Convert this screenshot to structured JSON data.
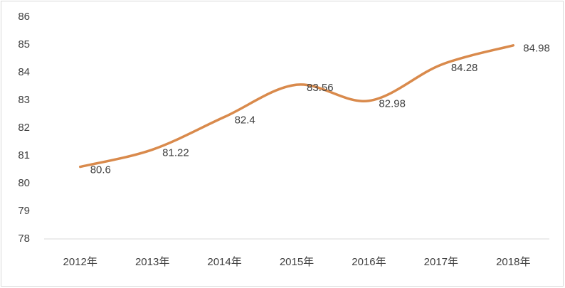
{
  "chart_data": {
    "type": "line",
    "categories": [
      "2012年",
      "2013年",
      "2014年",
      "2015年",
      "2016年",
      "2017年",
      "2018年"
    ],
    "values": [
      80.6,
      81.22,
      82.4,
      83.56,
      82.98,
      84.28,
      84.98
    ],
    "color": "#d98a4c",
    "ylim": [
      78,
      86
    ],
    "yticks": [
      78,
      79,
      80,
      81,
      82,
      83,
      84,
      85,
      86
    ],
    "data_labels": true
  }
}
